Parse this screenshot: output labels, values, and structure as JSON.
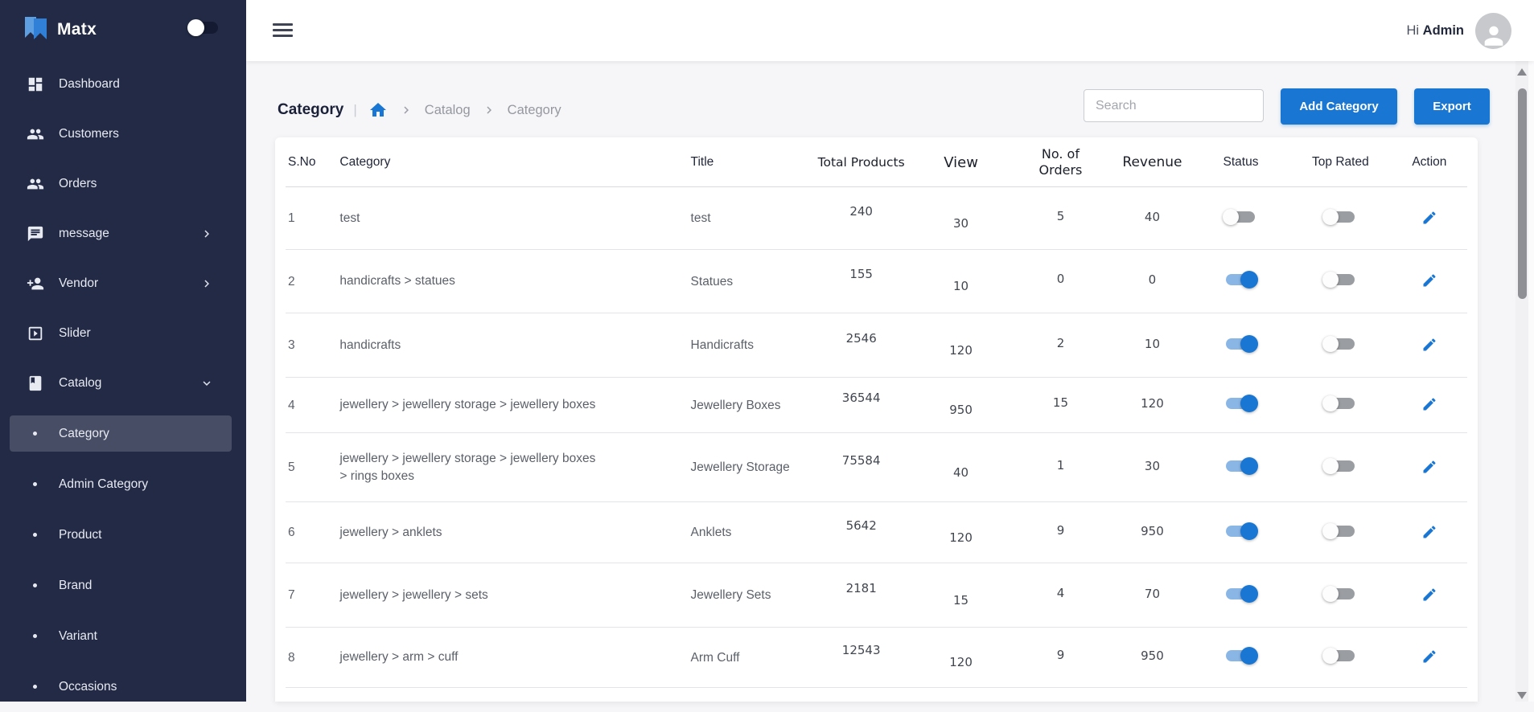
{
  "brand": {
    "name": "Matx",
    "logo_icon": "matx-bookmark-icon"
  },
  "sidebar": {
    "items": [
      {
        "label": "Dashboard",
        "icon": "dashboard-icon",
        "chevron": "none"
      },
      {
        "label": "Customers",
        "icon": "people-icon",
        "chevron": "none"
      },
      {
        "label": "Orders",
        "icon": "people-icon",
        "chevron": "none"
      },
      {
        "label": "message",
        "icon": "chat-icon",
        "chevron": "right"
      },
      {
        "label": "Vendor",
        "icon": "person-add-icon",
        "chevron": "right"
      },
      {
        "label": "Slider",
        "icon": "slideshow-icon",
        "chevron": "none"
      },
      {
        "label": "Catalog",
        "icon": "book-icon",
        "chevron": "down"
      }
    ],
    "submenu": [
      {
        "label": "Category",
        "selected": true
      },
      {
        "label": "Admin Category",
        "selected": false
      },
      {
        "label": "Product",
        "selected": false
      },
      {
        "label": "Brand",
        "selected": false
      },
      {
        "label": "Variant",
        "selected": false
      },
      {
        "label": "Occasions",
        "selected": false
      }
    ]
  },
  "topbar": {
    "greeting_prefix": "Hi",
    "user": "Admin",
    "avatar_icon": "person-icon"
  },
  "page": {
    "title": "Category",
    "breadcrumb_separator": "|",
    "breadcrumb": [
      "Catalog",
      "Category"
    ],
    "search_placeholder": "Search",
    "add_button": "Add Category",
    "export_button": "Export"
  },
  "table": {
    "columns": [
      "S.No",
      "Category",
      "Title",
      "Total Products",
      "View",
      "No. of Orders",
      "Revenue",
      "Status",
      "Top Rated",
      "Action"
    ],
    "rows": [
      {
        "sno": "1",
        "category": "test",
        "title": "test",
        "total_products": "240",
        "view": "30",
        "orders": "5",
        "revenue": "40",
        "status": false,
        "top_rated": false,
        "action_icon": "edit-icon"
      },
      {
        "sno": "2",
        "category": "handicrafts > statues",
        "title": "Statues",
        "total_products": "155",
        "view": "10",
        "orders": "0",
        "revenue": "0",
        "status": true,
        "top_rated": false,
        "action_icon": "edit-icon"
      },
      {
        "sno": "3",
        "category": "handicrafts",
        "title": "Handicrafts",
        "total_products": "2546",
        "view": "120",
        "orders": "2",
        "revenue": "10",
        "status": true,
        "top_rated": false,
        "action_icon": "edit-icon"
      },
      {
        "sno": "4",
        "category": "jewellery > jewellery storage > jewellery boxes",
        "title": "Jewellery Boxes",
        "total_products": "36544",
        "view": "950",
        "orders": "15",
        "revenue": "120",
        "status": true,
        "top_rated": false,
        "action_icon": "edit-icon"
      },
      {
        "sno": "5",
        "category": "jewellery > jewellery storage > jewellery boxes > rings boxes",
        "title": "Jewellery Storage",
        "total_products": "75584",
        "view": "40",
        "orders": "1",
        "revenue": "30",
        "status": true,
        "top_rated": false,
        "action_icon": "edit-icon"
      },
      {
        "sno": "6",
        "category": "jewellery > anklets",
        "title": "Anklets",
        "total_products": "5642",
        "view": "120",
        "orders": "9",
        "revenue": "950",
        "status": true,
        "top_rated": false,
        "action_icon": "edit-icon"
      },
      {
        "sno": "7",
        "category": "jewellery > jewellery > sets",
        "title": "Jewellery Sets",
        "total_products": "2181",
        "view": "15",
        "orders": "4",
        "revenue": "70",
        "status": true,
        "top_rated": false,
        "action_icon": "edit-icon"
      },
      {
        "sno": "8",
        "category": "jewellery > arm > cuff",
        "title": "Arm Cuff",
        "total_products": "12543",
        "view": "120",
        "orders": "9",
        "revenue": "950",
        "status": true,
        "top_rated": false,
        "action_icon": "edit-icon"
      }
    ]
  },
  "colors": {
    "accent": "#1976d2",
    "sidebar_bg": "#222a45",
    "toggle_on_knob": "#1976d2",
    "toggle_on_track": "#8ab6e6",
    "toggle_off_track": "#9a9da1",
    "content_bg": "#f6f6f8"
  }
}
